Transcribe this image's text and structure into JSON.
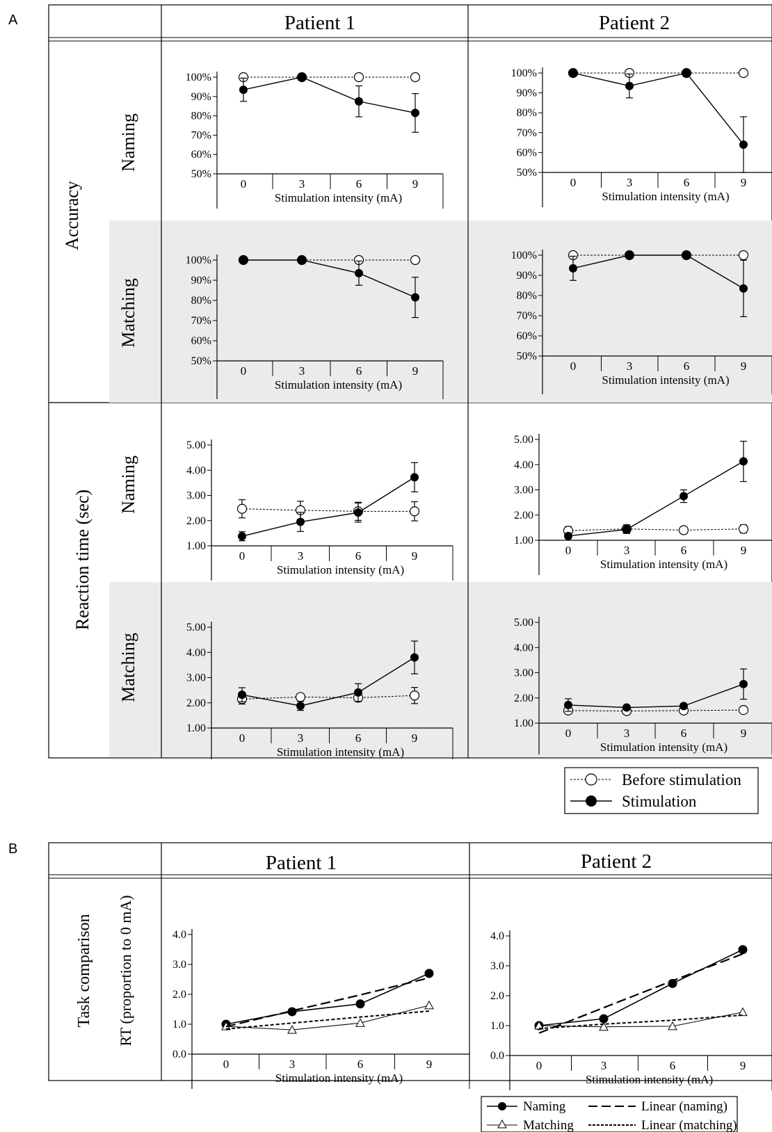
{
  "panel_letters": {
    "a": "A",
    "b": "B"
  },
  "patients": [
    "Patient 1",
    "Patient 2"
  ],
  "row_labels_a": {
    "accuracy": "Accuracy",
    "reaction_time": "Reaction time (sec)",
    "naming": "Naming",
    "matching": "Matching"
  },
  "row_labels_b": {
    "task_comparison": "Task comparison",
    "rt_proportion": "RT (proportion to  0 mA)"
  },
  "xlabel_default": "Stimulation intensity (mA)",
  "legend_a": {
    "before": "Before stimulation",
    "stim": "Stimulation"
  },
  "legend_b": {
    "naming": "Naming",
    "matching": "Matching",
    "lin_naming": "Linear (naming)",
    "lin_matching": "Linear (matching)"
  },
  "chart_data": [
    {
      "id": "p1-acc-naming",
      "type": "line",
      "patient": "Patient 1",
      "task": "Naming",
      "measure": "Accuracy",
      "x": [
        0,
        3,
        6,
        9
      ],
      "ylim": [
        50,
        100
      ],
      "yticks": [
        50,
        60,
        70,
        80,
        90,
        100
      ],
      "yformat": "percent",
      "xlabel": "Stimulation intensity (mA)",
      "series": [
        {
          "name": "Before stimulation",
          "values": [
            100,
            100,
            100,
            100
          ],
          "errors": [
            0,
            0,
            0,
            0
          ]
        },
        {
          "name": "Stimulation",
          "values": [
            93.5,
            100,
            87.5,
            81.5
          ],
          "errors": [
            6,
            0,
            8,
            10
          ]
        }
      ]
    },
    {
      "id": "p2-acc-naming",
      "type": "line",
      "patient": "Patient 2",
      "task": "Naming",
      "measure": "Accuracy",
      "x": [
        0,
        3,
        6,
        9
      ],
      "ylim": [
        50,
        100
      ],
      "yticks": [
        50,
        60,
        70,
        80,
        90,
        100
      ],
      "yformat": "percent",
      "xlabel": "Stimulation intensity (mA)",
      "series": [
        {
          "name": "Before stimulation",
          "values": [
            100,
            100,
            100,
            100
          ],
          "errors": [
            0,
            0,
            0,
            0
          ]
        },
        {
          "name": "Stimulation",
          "values": [
            100,
            93.5,
            100,
            64
          ],
          "errors": [
            0,
            6,
            0,
            14
          ]
        }
      ]
    },
    {
      "id": "p1-acc-matching",
      "type": "line",
      "patient": "Patient 1",
      "task": "Matching",
      "measure": "Accuracy",
      "x": [
        0,
        3,
        6,
        9
      ],
      "ylim": [
        50,
        100
      ],
      "yticks": [
        50,
        60,
        70,
        80,
        90,
        100
      ],
      "yformat": "percent",
      "xlabel": "Stimulation intensity (mA)",
      "series": [
        {
          "name": "Before stimulation",
          "values": [
            100,
            100,
            100,
            100
          ],
          "errors": [
            0,
            0,
            0,
            0
          ]
        },
        {
          "name": "Stimulation",
          "values": [
            100,
            100,
            93.5,
            81.5
          ],
          "errors": [
            0,
            0,
            6,
            10
          ]
        }
      ]
    },
    {
      "id": "p2-acc-matching",
      "type": "line",
      "patient": "Patient 2",
      "task": "Matching",
      "measure": "Accuracy",
      "x": [
        0,
        3,
        6,
        9
      ],
      "ylim": [
        50,
        100
      ],
      "yticks": [
        50,
        60,
        70,
        80,
        90,
        100
      ],
      "yformat": "percent",
      "xlabel": "Stimulation intensity (mA)",
      "series": [
        {
          "name": "Before stimulation",
          "values": [
            100,
            100,
            100,
            100
          ],
          "errors": [
            0,
            0,
            0,
            0
          ]
        },
        {
          "name": "Stimulation",
          "values": [
            93.5,
            100,
            100,
            83.5
          ],
          "errors": [
            6,
            0,
            0,
            14
          ]
        }
      ]
    },
    {
      "id": "p1-rt-naming",
      "type": "line",
      "patient": "Patient 1",
      "task": "Naming",
      "measure": "Reaction time (sec)",
      "x": [
        0,
        3,
        6,
        9
      ],
      "ylim": [
        1,
        5
      ],
      "yticks": [
        1,
        2,
        3,
        4,
        5
      ],
      "yformat": "fixed2",
      "xlabel": "Stimulation intensity (mA)",
      "series": [
        {
          "name": "Before stimulation",
          "values": [
            2.47,
            2.41,
            2.37,
            2.37
          ],
          "errors": [
            0.36,
            0.36,
            0.36,
            0.38
          ]
        },
        {
          "name": "Stimulation",
          "values": [
            1.38,
            1.95,
            2.32,
            3.72
          ],
          "errors": [
            0.18,
            0.38,
            0.38,
            0.58
          ]
        }
      ]
    },
    {
      "id": "p2-rt-naming",
      "type": "line",
      "patient": "Patient 2",
      "task": "Naming",
      "measure": "Reaction time (sec)",
      "x": [
        0,
        3,
        6,
        9
      ],
      "ylim": [
        1,
        5
      ],
      "yticks": [
        1,
        2,
        3,
        4,
        5
      ],
      "yformat": "fixed2",
      "xlabel": "Stimulation intensity (mA)",
      "series": [
        {
          "name": "Before stimulation",
          "values": [
            1.38,
            1.45,
            1.4,
            1.45
          ],
          "errors": [
            0.16,
            0.16,
            0.1,
            0.16
          ]
        },
        {
          "name": "Stimulation",
          "values": [
            1.17,
            1.43,
            2.75,
            4.13
          ],
          "errors": [
            0.1,
            0.16,
            0.25,
            0.8
          ]
        }
      ]
    },
    {
      "id": "p1-rt-matching",
      "type": "line",
      "patient": "Patient 1",
      "task": "Matching",
      "measure": "Reaction time (sec)",
      "x": [
        0,
        3,
        6,
        9
      ],
      "ylim": [
        1,
        5
      ],
      "yticks": [
        1,
        2,
        3,
        4,
        5
      ],
      "yformat": "fixed2",
      "xlabel": "Stimulation intensity (mA)",
      "series": [
        {
          "name": "Before stimulation",
          "values": [
            2.15,
            2.23,
            2.2,
            2.29
          ],
          "errors": [
            0.2,
            0.1,
            0.15,
            0.32
          ]
        },
        {
          "name": "Stimulation",
          "values": [
            2.32,
            1.88,
            2.41,
            3.8
          ],
          "errors": [
            0.28,
            0.18,
            0.35,
            0.65
          ]
        }
      ]
    },
    {
      "id": "p2-rt-matching",
      "type": "line",
      "patient": "Patient 2",
      "task": "Matching",
      "measure": "Reaction time (sec)",
      "x": [
        0,
        3,
        6,
        9
      ],
      "ylim": [
        1,
        5
      ],
      "yticks": [
        1,
        2,
        3,
        4,
        5
      ],
      "yformat": "fixed2",
      "xlabel": "Stimulation intensity (mA)",
      "series": [
        {
          "name": "Before stimulation",
          "values": [
            1.5,
            1.48,
            1.5,
            1.52
          ],
          "errors": [
            0.1,
            0.08,
            0.08,
            0.1
          ]
        },
        {
          "name": "Stimulation",
          "values": [
            1.72,
            1.62,
            1.68,
            2.55
          ],
          "errors": [
            0.25,
            0.08,
            0.08,
            0.6
          ]
        }
      ]
    },
    {
      "id": "p1-task-comparison",
      "type": "line",
      "patient": "Patient 1",
      "measure": "RT (proportion to  0 mA)",
      "x": [
        0,
        3,
        6,
        9
      ],
      "ylim": [
        0,
        4
      ],
      "yticks": [
        0,
        1,
        2,
        3,
        4
      ],
      "yformat": "fixed1",
      "xlabel": "Stimulation intensity (mA)",
      "series": [
        {
          "name": "Naming",
          "values": [
            1.0,
            1.42,
            1.68,
            2.7
          ]
        },
        {
          "name": "Matching",
          "values": [
            0.93,
            0.81,
            1.04,
            1.63
          ]
        },
        {
          "name": "Linear (naming)",
          "values": [
            0.92,
            1.45,
            1.98,
            2.55
          ]
        },
        {
          "name": "Linear (matching)",
          "values": [
            0.84,
            1.04,
            1.24,
            1.44
          ]
        }
      ]
    },
    {
      "id": "p2-task-comparison",
      "type": "line",
      "patient": "Patient 2",
      "measure": "RT (proportion to  0 mA)",
      "x": [
        0,
        3,
        6,
        9
      ],
      "ylim": [
        0,
        4
      ],
      "yticks": [
        0,
        1,
        2,
        3,
        4
      ],
      "yformat": "fixed1",
      "xlabel": "Stimulation intensity (mA)",
      "series": [
        {
          "name": "Naming",
          "values": [
            1.0,
            1.23,
            2.41,
            3.54
          ]
        },
        {
          "name": "Matching",
          "values": [
            1.0,
            0.96,
            0.98,
            1.45
          ]
        },
        {
          "name": "Linear (naming)",
          "values": [
            0.75,
            1.6,
            2.5,
            3.4
          ]
        },
        {
          "name": "Linear (matching)",
          "values": [
            0.9,
            1.05,
            1.18,
            1.35
          ]
        }
      ]
    }
  ]
}
